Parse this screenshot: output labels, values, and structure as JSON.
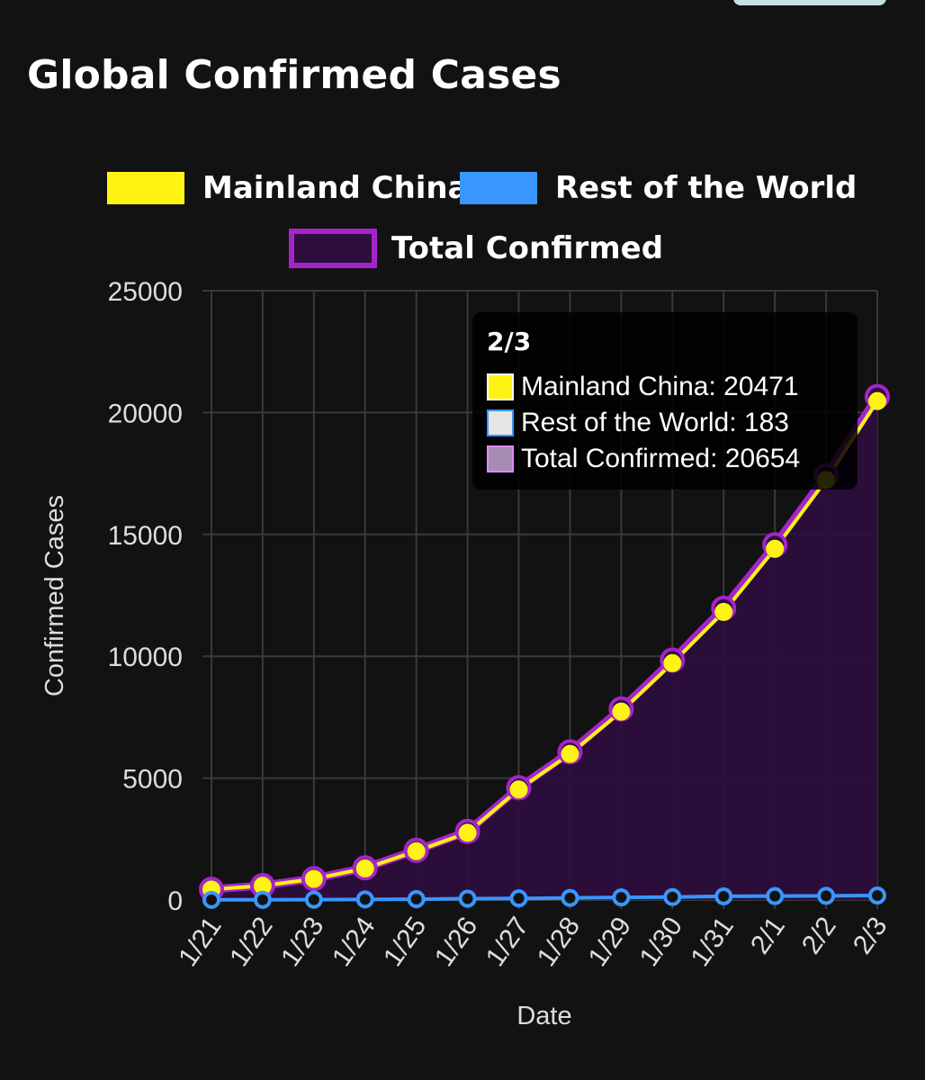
{
  "title": "Global Confirmed Cases",
  "legend": [
    {
      "label": "Mainland China",
      "fill": "#fff314",
      "border": "#fff314"
    },
    {
      "label": "Rest of the World",
      "fill": "#3996ff",
      "border": "#3996ff"
    },
    {
      "label": "Total Confirmed",
      "fill": "#2d0e3d",
      "border": "#a524c9"
    }
  ],
  "tooltip": {
    "title": "2/3",
    "rows": [
      {
        "text": "Mainland China: 20471",
        "swatch": "#fff314",
        "border": "#ffffff"
      },
      {
        "text": "Rest of the World: 183",
        "swatch": "#e6e6e6",
        "border": "#3996ff"
      },
      {
        "text": "Total Confirmed: 20654",
        "swatch": "#a78bb3",
        "border": "#e08bff"
      }
    ]
  },
  "colors": {
    "background": "#121212",
    "grid": "#3a3a3a",
    "mainland": "#fff314",
    "rest": "#3996ff",
    "total_line": "#a524c9",
    "total_fill": "#2d0e3d",
    "text": "#ffffff",
    "axis_text": "#dddddd"
  },
  "chart_data": {
    "type": "line",
    "title": "Global Confirmed Cases",
    "xlabel": "Date",
    "ylabel": "Confirmed Cases",
    "ylim": [
      0,
      25000
    ],
    "yticks": [
      "0",
      "5000",
      "10000",
      "15000",
      "20000",
      "25000"
    ],
    "grid": true,
    "legend_position": "top",
    "categories": [
      "1/21",
      "1/22",
      "1/23",
      "1/24",
      "1/25",
      "1/26",
      "1/27",
      "1/28",
      "1/29",
      "1/30",
      "1/31",
      "2/1",
      "2/2",
      "2/3"
    ],
    "series": [
      {
        "name": "Mainland China",
        "type": "line",
        "values": [
          431,
          585,
          864,
          1295,
          2005,
          2760,
          4537,
          5994,
          7733,
          9720,
          11821,
          14411,
          17238,
          20471
        ]
      },
      {
        "name": "Rest of the World",
        "type": "line",
        "values": [
          6,
          8,
          14,
          24,
          35,
          55,
          68,
          85,
          106,
          122,
          150,
          161,
          171,
          183
        ]
      },
      {
        "name": "Total Confirmed",
        "type": "area",
        "values": [
          437,
          593,
          878,
          1319,
          2040,
          2815,
          4605,
          6079,
          7839,
          9842,
          11971,
          14572,
          17409,
          20654
        ]
      }
    ]
  }
}
